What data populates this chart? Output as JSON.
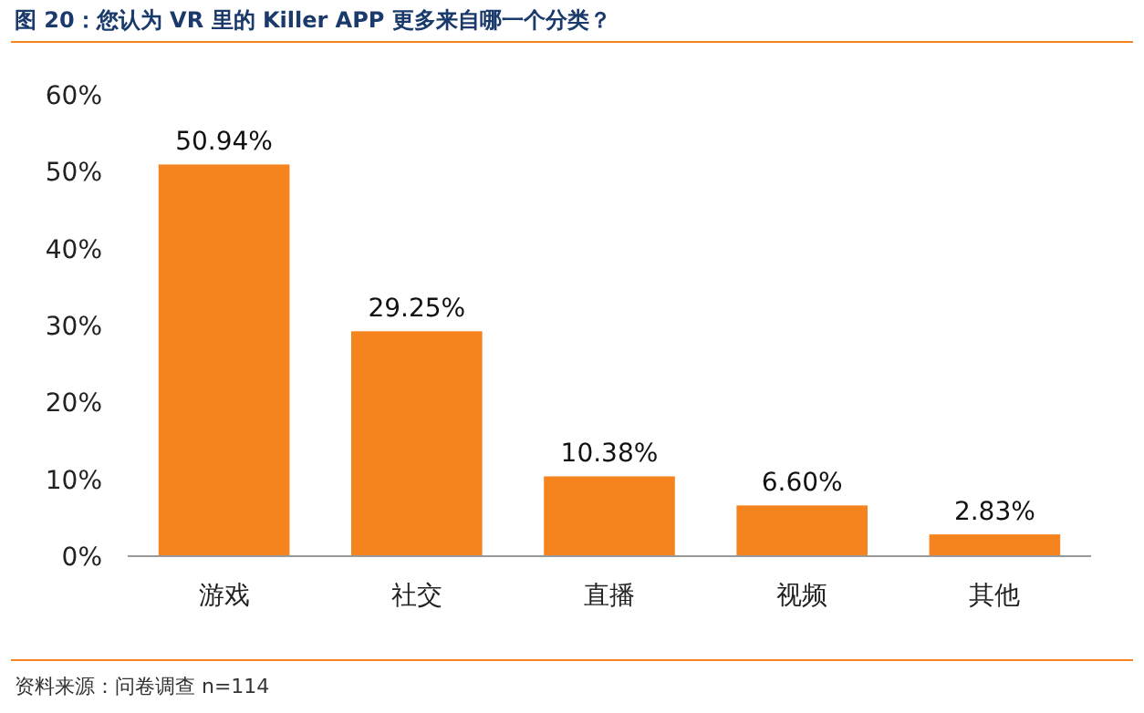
{
  "chart_data": {
    "type": "bar",
    "title": "图 20：您认为 VR 里的 Killer APP 更多来自哪一个分类？",
    "categories": [
      "游戏",
      "社交",
      "直播",
      "视频",
      "其他"
    ],
    "values": [
      50.94,
      29.25,
      10.38,
      6.6,
      2.83
    ],
    "value_labels": [
      "50.94%",
      "29.25%",
      "10.38%",
      "6.60%",
      "2.83%"
    ],
    "color": "#f5841f",
    "ylim": [
      0,
      60
    ],
    "yticks": [
      {
        "value": 0,
        "label": "0%"
      },
      {
        "value": 10,
        "label": "10%"
      },
      {
        "value": 20,
        "label": "20%"
      },
      {
        "value": 30,
        "label": "30%"
      },
      {
        "value": 40,
        "label": "40%"
      },
      {
        "value": 50,
        "label": "50%"
      },
      {
        "value": 60,
        "label": "60%"
      }
    ],
    "grid": false,
    "annotations": [
      "资料来源：问卷调查 n=114"
    ]
  }
}
